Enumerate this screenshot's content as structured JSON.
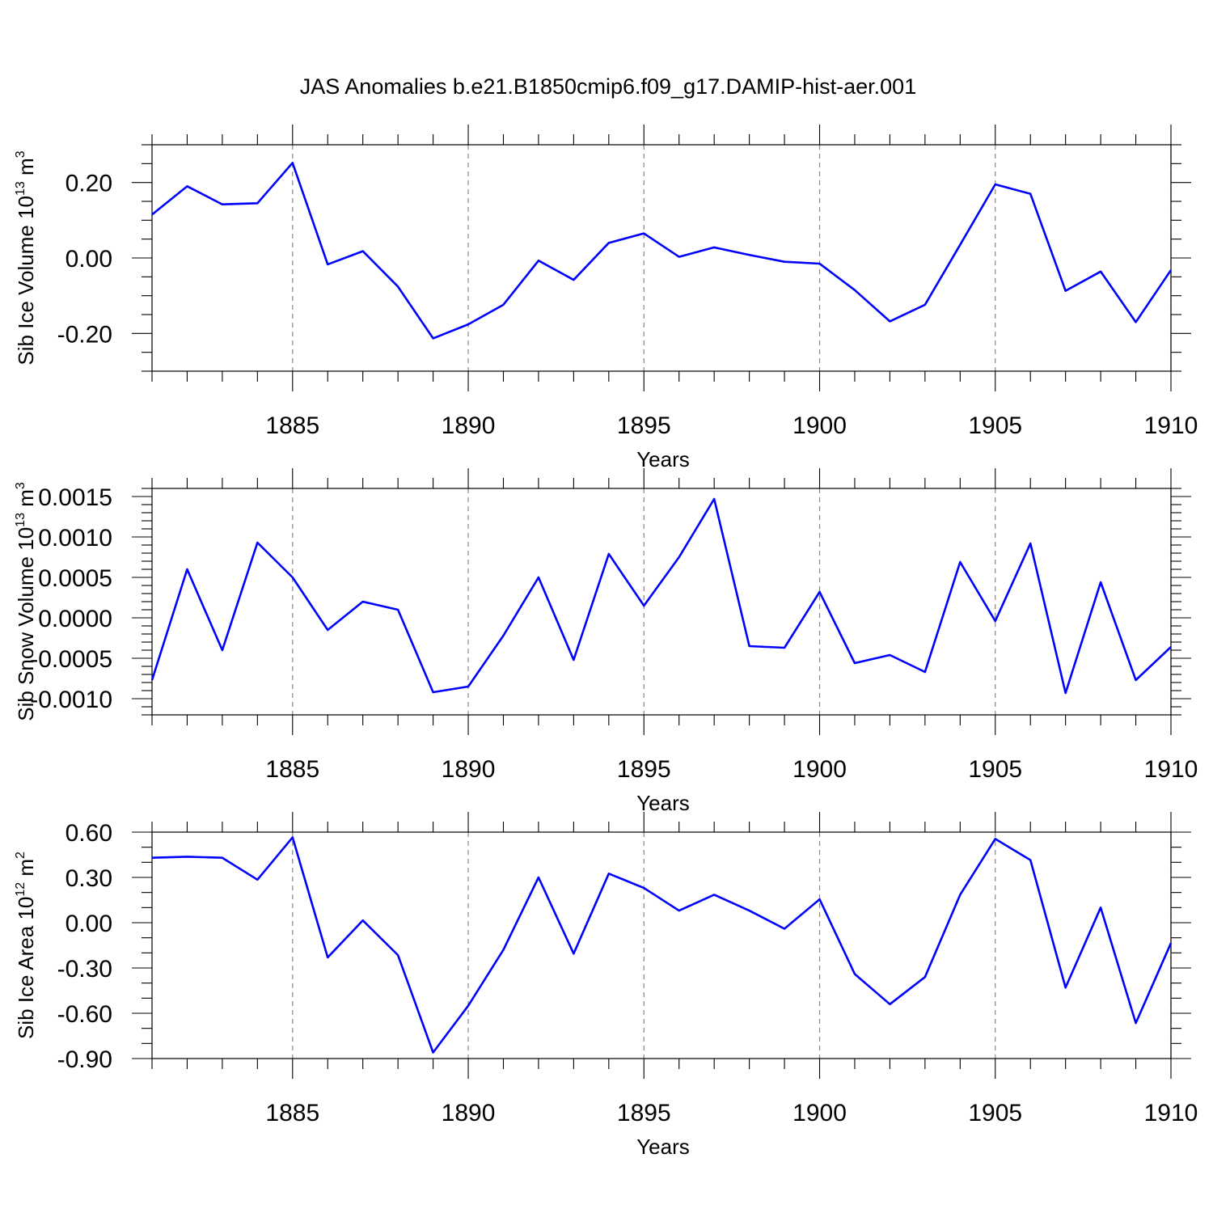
{
  "title": "JAS Anomalies b.e21.B1850cmip6.f09_g17.DAMIP-hist-aer.001",
  "chart_data": [
    {
      "type": "line",
      "title": "",
      "ylabel": {
        "main": "Sib Ice Volume 10",
        "sup": "13",
        "unit": " m",
        "unit_sup": "3"
      },
      "xlabel": "Years",
      "xlim": [
        1881,
        1910
      ],
      "ylim": [
        -0.3,
        0.3
      ],
      "y_ticks": [
        -0.2,
        0.0,
        0.2
      ],
      "y_tick_labels": [
        "-0.20",
        "0.00",
        "0.20"
      ],
      "y_minor_step": 0.05,
      "x_ticks": [
        1885,
        1890,
        1895,
        1900,
        1905,
        1910
      ],
      "x_tick_labels": [
        "1885",
        "1890",
        "1895",
        "1900",
        "1905",
        "1910"
      ],
      "grid": "dashed vertical at major x ticks",
      "x": [
        1881,
        1882,
        1883,
        1884,
        1885,
        1886,
        1887,
        1888,
        1889,
        1890,
        1891,
        1892,
        1893,
        1894,
        1895,
        1896,
        1897,
        1898,
        1899,
        1900,
        1901,
        1902,
        1903,
        1904,
        1905,
        1906,
        1907,
        1908,
        1909,
        1910
      ],
      "series": [
        {
          "values": [
            0.115,
            0.19,
            0.142,
            0.145,
            0.252,
            -0.017,
            0.018,
            -0.076,
            -0.213,
            -0.176,
            -0.124,
            -0.007,
            -0.058,
            0.04,
            0.065,
            0.003,
            0.028,
            0.008,
            -0.01,
            -0.015,
            -0.085,
            -0.168,
            -0.124,
            0.035,
            0.195,
            0.17,
            -0.087,
            -0.036,
            -0.17,
            -0.032
          ]
        }
      ]
    },
    {
      "type": "line",
      "title": "",
      "ylabel": {
        "main": "Sib Snow Volume 10",
        "sup": "13",
        "unit": " m",
        "unit_sup": "3"
      },
      "xlabel": "Years",
      "xlim": [
        1881,
        1910
      ],
      "ylim": [
        -0.0012,
        0.0016
      ],
      "y_ticks": [
        -0.001,
        -0.0005,
        0.0,
        0.0005,
        0.001,
        0.0015
      ],
      "y_tick_labels": [
        "-0.0010",
        "-0.0005",
        "0.0000",
        "0.0005",
        "0.0010",
        "0.0015"
      ],
      "y_minor_step": 0.0001,
      "x_ticks": [
        1885,
        1890,
        1895,
        1900,
        1905,
        1910
      ],
      "x_tick_labels": [
        "1885",
        "1890",
        "1895",
        "1900",
        "1905",
        "1910"
      ],
      "grid": "dashed vertical at major x ticks",
      "x": [
        1881,
        1882,
        1883,
        1884,
        1885,
        1886,
        1887,
        1888,
        1889,
        1890,
        1891,
        1892,
        1893,
        1894,
        1895,
        1896,
        1897,
        1898,
        1899,
        1900,
        1901,
        1902,
        1903,
        1904,
        1905,
        1906,
        1907,
        1908,
        1909,
        1910
      ],
      "series": [
        {
          "values": [
            -0.00077,
            0.0006,
            -0.0004,
            0.00093,
            0.0005,
            -0.00015,
            0.0002,
            0.0001,
            -0.00092,
            -0.00085,
            -0.00022,
            0.0005,
            -0.00052,
            0.00079,
            0.00015,
            0.00075,
            0.00147,
            -0.00035,
            -0.00037,
            0.00032,
            -0.00056,
            -0.00046,
            -0.00067,
            0.00069,
            -4e-05,
            0.00092,
            -0.00093,
            0.00044,
            -0.00077,
            -0.00036
          ]
        }
      ]
    },
    {
      "type": "line",
      "title": "",
      "ylabel": {
        "main": "Sib Ice Area 10",
        "sup": "12",
        "unit": " m",
        "unit_sup": "2"
      },
      "xlabel": "Years",
      "xlim": [
        1881,
        1910
      ],
      "ylim": [
        -0.9,
        0.6
      ],
      "y_ticks": [
        -0.9,
        -0.6,
        -0.3,
        0.0,
        0.3,
        0.6
      ],
      "y_tick_labels": [
        "-0.90",
        "-0.60",
        "-0.30",
        "0.00",
        "0.30",
        "0.60"
      ],
      "y_minor_step": 0.1,
      "x_ticks": [
        1885,
        1890,
        1895,
        1900,
        1905,
        1910
      ],
      "x_tick_labels": [
        "1885",
        "1890",
        "1895",
        "1900",
        "1905",
        "1910"
      ],
      "grid": "dashed vertical at major x ticks",
      "x": [
        1881,
        1882,
        1883,
        1884,
        1885,
        1886,
        1887,
        1888,
        1889,
        1890,
        1891,
        1892,
        1893,
        1894,
        1895,
        1896,
        1897,
        1898,
        1899,
        1900,
        1901,
        1902,
        1903,
        1904,
        1905,
        1906,
        1907,
        1908,
        1909,
        1910
      ],
      "series": [
        {
          "values": [
            0.43,
            0.437,
            0.43,
            0.285,
            0.565,
            -0.23,
            0.015,
            -0.215,
            -0.86,
            -0.55,
            -0.18,
            0.3,
            -0.205,
            0.325,
            0.23,
            0.08,
            0.185,
            0.08,
            -0.04,
            0.155,
            -0.34,
            -0.54,
            -0.36,
            0.185,
            0.555,
            0.415,
            -0.43,
            0.1,
            -0.665,
            -0.135
          ]
        }
      ]
    }
  ],
  "style": {
    "line_color": "#0000ff",
    "grid_color": "#888888"
  }
}
